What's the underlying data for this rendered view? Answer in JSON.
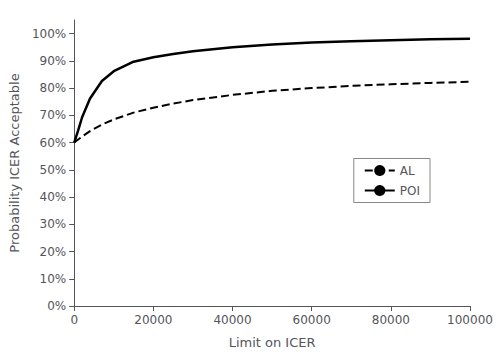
{
  "chart_data": {
    "type": "line",
    "xlabel": "Limit on ICER",
    "ylabel": "Probability ICER Acceptable",
    "x": [
      0,
      1000,
      2000,
      4000,
      7000,
      10000,
      15000,
      20000,
      25000,
      30000,
      40000,
      50000,
      60000,
      70000,
      80000,
      90000,
      100000
    ],
    "series": [
      {
        "name": "AL",
        "color": "#000000",
        "line_style": "dashed",
        "values": [
          0.6,
          0.611,
          0.622,
          0.642,
          0.666,
          0.685,
          0.71,
          0.728,
          0.743,
          0.756,
          0.775,
          0.79,
          0.8,
          0.808,
          0.814,
          0.819,
          0.823
        ]
      },
      {
        "name": "POI",
        "color": "#000000",
        "line_style": "solid",
        "values": [
          0.6,
          0.645,
          0.693,
          0.762,
          0.826,
          0.862,
          0.897,
          0.913,
          0.925,
          0.935,
          0.95,
          0.96,
          0.967,
          0.972,
          0.976,
          0.979,
          0.981
        ]
      }
    ],
    "xlim": [
      0,
      100000
    ],
    "xticks": [
      0,
      20000,
      40000,
      60000,
      80000,
      100000
    ],
    "ylim": [
      0.0,
      1.05
    ],
    "yticks": [
      {
        "value": 0.0,
        "label": "0%"
      },
      {
        "value": 0.1,
        "label": "10%"
      },
      {
        "value": 0.2,
        "label": "20%"
      },
      {
        "value": 0.3,
        "label": "30%"
      },
      {
        "value": 0.4,
        "label": "40%"
      },
      {
        "value": 0.5,
        "label": "50%"
      },
      {
        "value": 0.6,
        "label": "60%"
      },
      {
        "value": 0.7,
        "label": "70%"
      },
      {
        "value": 0.8,
        "label": "80%"
      },
      {
        "value": 0.9,
        "label": "90%"
      },
      {
        "value": 1.0,
        "label": "100%"
      }
    ],
    "grid": false,
    "legend": "right"
  }
}
